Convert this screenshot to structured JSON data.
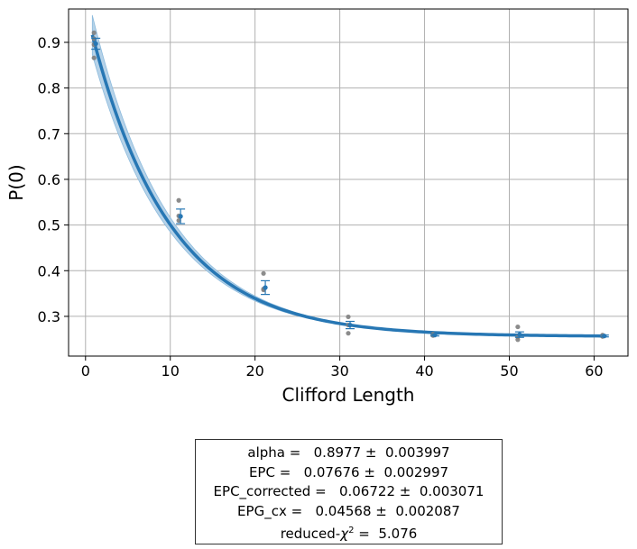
{
  "chart_data": {
    "type": "scatter",
    "title": "",
    "xlabel": "Clifford Length",
    "ylabel": "P(0)",
    "xlim": [
      -2,
      64
    ],
    "ylim": [
      0.213,
      0.973
    ],
    "x_ticks": [
      0,
      10,
      20,
      30,
      40,
      50,
      60
    ],
    "y_ticks": [
      0.3,
      0.4,
      0.5,
      0.6,
      0.7,
      0.8,
      0.9
    ],
    "grid": true,
    "colors": {
      "fit": "#2777b4",
      "band": "#aecde6",
      "raw_points": "#808080",
      "means": "#2777b4",
      "grid": "#b0b0b0"
    },
    "raw_points": [
      {
        "x": 1,
        "y": 0.921
      },
      {
        "x": 1,
        "y": 0.908
      },
      {
        "x": 1,
        "y": 0.895
      },
      {
        "x": 1,
        "y": 0.866
      },
      {
        "x": 11,
        "y": 0.554
      },
      {
        "x": 11,
        "y": 0.52
      },
      {
        "x": 11,
        "y": 0.51
      },
      {
        "x": 21,
        "y": 0.394
      },
      {
        "x": 21,
        "y": 0.36
      },
      {
        "x": 21,
        "y": 0.358
      },
      {
        "x": 31,
        "y": 0.299
      },
      {
        "x": 31,
        "y": 0.281
      },
      {
        "x": 31,
        "y": 0.263
      },
      {
        "x": 41,
        "y": 0.261
      },
      {
        "x": 41,
        "y": 0.259
      },
      {
        "x": 41,
        "y": 0.258
      },
      {
        "x": 51,
        "y": 0.277
      },
      {
        "x": 51,
        "y": 0.255
      },
      {
        "x": 51,
        "y": 0.249
      },
      {
        "x": 61,
        "y": 0.259
      },
      {
        "x": 61,
        "y": 0.257
      },
      {
        "x": 61,
        "y": 0.256
      }
    ],
    "means": [
      {
        "x": 1,
        "y": 0.897,
        "err": 0.012
      },
      {
        "x": 11,
        "y": 0.519,
        "err": 0.016
      },
      {
        "x": 21,
        "y": 0.363,
        "err": 0.015
      },
      {
        "x": 31,
        "y": 0.281,
        "err": 0.008
      },
      {
        "x": 41,
        "y": 0.259,
        "err": 0.002
      },
      {
        "x": 51,
        "y": 0.26,
        "err": 0.006
      },
      {
        "x": 61,
        "y": 0.257,
        "err": 0.002
      }
    ],
    "fit": {
      "model": "A*alpha^x + B",
      "A": 0.72,
      "B": 0.256,
      "alpha": 0.8977,
      "x_range": [
        0.8,
        61.2
      ]
    }
  },
  "stats": [
    "alpha =   0.8977 ±  0.003997",
    "EPC =   0.07676 ±  0.002997",
    "EPC_corrected =   0.06722 ±  0.003071",
    "EPG_cx =   0.04568 ±  0.002087"
  ],
  "chi": {
    "label": "reduced-",
    "symbol": "χ",
    "superscript": "2",
    "value": " =  5.076"
  }
}
